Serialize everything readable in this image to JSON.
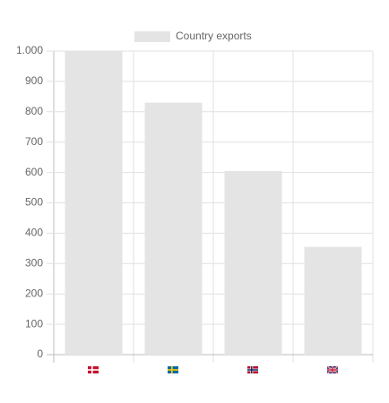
{
  "chart_data": {
    "type": "bar",
    "categories": [
      null,
      null,
      null,
      null
    ],
    "series": [
      {
        "name": "Country exports",
        "color": "#e4e4e4",
        "values": [
          1000,
          830,
          605,
          355
        ]
      }
    ],
    "ylim": [
      0,
      1000
    ],
    "yticks": [
      0,
      100,
      200,
      300,
      400,
      500,
      600,
      700,
      800,
      900,
      {
        "value": 1000,
        "label": "1.000"
      }
    ],
    "grid": true,
    "legend": "top"
  }
}
